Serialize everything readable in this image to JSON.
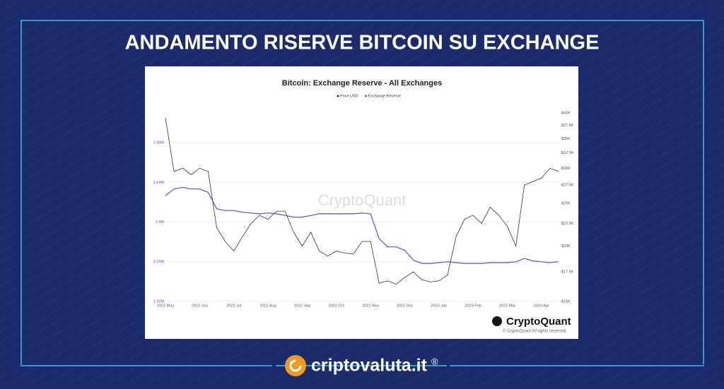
{
  "header": {
    "title": "ANDAMENTO RISERVE BITCOIN SU EXCHANGE"
  },
  "footer": {
    "brand": "criptovaluta.it",
    "mark": "®"
  },
  "chart_data": {
    "type": "line",
    "title": "Bitcoin: Exchange Reserve - All Exchanges",
    "watermark": "CryptoQuant",
    "logo_text": "CryptoQuant",
    "copyright": "© CryptoQuant All rights reserved.",
    "categories": [
      "2022 May",
      null,
      null,
      null,
      "2022 Jun",
      null,
      null,
      null,
      "2022 Jul",
      null,
      null,
      null,
      "2022 Aug",
      null,
      null,
      null,
      "2022 Sep",
      null,
      null,
      null,
      "2022 Oct",
      null,
      null,
      null,
      "2022 Nov",
      null,
      null,
      null,
      "2022 Dec",
      null,
      null,
      null,
      "2023 Jan",
      null,
      null,
      null,
      "2023 Feb",
      null,
      null,
      null,
      "2023 Mar",
      null,
      null,
      null,
      "2023 Apr",
      null,
      null
    ],
    "series": [
      {
        "name": "Price USD",
        "color": "#333333",
        "axis": "y2",
        "values": [
          39000,
          29500,
          30000,
          29000,
          30000,
          29500,
          22000,
          20500,
          19500,
          21000,
          22500,
          23500,
          23000,
          24000,
          24000,
          21500,
          20000,
          21500,
          19500,
          19000,
          19500,
          19300,
          19200,
          20500,
          20500,
          16500,
          16700,
          16400,
          17000,
          17500,
          16800,
          16600,
          16700,
          17200,
          21000,
          23000,
          23500,
          22500,
          24500,
          23500,
          22200,
          20000,
          27500,
          28000,
          28500,
          30000,
          29500
        ]
      },
      {
        "name": "Exchange Reserve",
        "color": "#5b4fd6",
        "values": [
          2560000,
          2600000,
          2610000,
          2600000,
          2600000,
          2580000,
          2480000,
          2470000,
          2470000,
          2460000,
          2455000,
          2450000,
          2455000,
          2450000,
          2440000,
          2430000,
          2430000,
          2440000,
          2450000,
          2450000,
          2450000,
          2450000,
          2450000,
          2455000,
          2450000,
          2300000,
          2250000,
          2250000,
          2230000,
          2170000,
          2150000,
          2150000,
          2155000,
          2160000,
          2155000,
          2150000,
          2150000,
          2150000,
          2155000,
          2155000,
          2155000,
          2160000,
          2180000,
          2165000,
          2160000,
          2155000,
          2160000
        ]
      }
    ],
    "ylim": [
      1920000,
      3060000
    ],
    "yticks": [
      {
        "value": 1920000,
        "label": "1.92M"
      },
      {
        "value": 2160000,
        "label": "2.16M"
      },
      {
        "value": 2400000,
        "label": "2.4M"
      },
      {
        "value": 2640000,
        "label": "2.64M"
      },
      {
        "value": 2880000,
        "label": "2.88M"
      }
    ],
    "y2lim": [
      15000,
      40000
    ],
    "y2log": true,
    "y2ticks": [
      {
        "value": 15000,
        "label": "$15K"
      },
      {
        "value": 17500,
        "label": "$17.5K"
      },
      {
        "value": 20000,
        "label": "$20K"
      },
      {
        "value": 22500,
        "label": "$22.5K"
      },
      {
        "value": 25000,
        "label": "$25K"
      },
      {
        "value": 27500,
        "label": "$27.5K"
      },
      {
        "value": 30000,
        "label": "$30K"
      },
      {
        "value": 32500,
        "label": "$32.5K"
      },
      {
        "value": 35000,
        "label": "$35K"
      },
      {
        "value": 37500,
        "label": "$37.5K"
      },
      {
        "value": 40000,
        "label": "$40K"
      }
    ],
    "grid": true,
    "legend": "top"
  }
}
